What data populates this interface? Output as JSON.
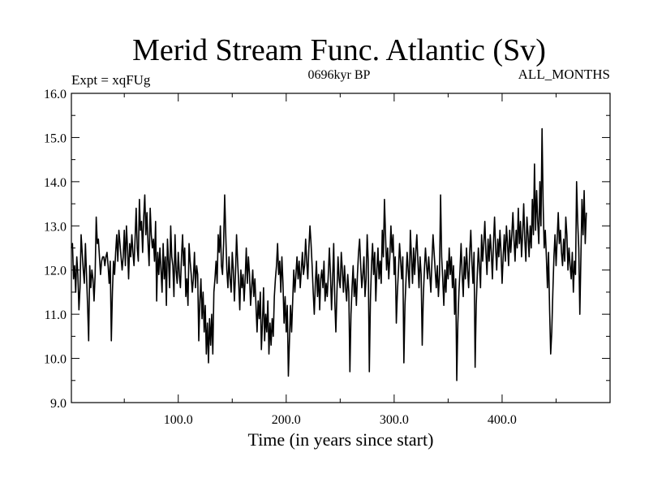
{
  "chart_data": {
    "type": "line",
    "title": "Merid Stream Func. Atlantic (Sv)",
    "subtitle_left": "Expt = xqFUg",
    "subtitle_center": "0696kyr BP",
    "subtitle_right": "ALL_MONTHS",
    "xlabel": "Time (in years since start)",
    "ylabel": "",
    "xlim": [
      1,
      500
    ],
    "ylim": [
      9.0,
      16.0
    ],
    "x_ticks": [
      100,
      200,
      300,
      400
    ],
    "x_tick_labels": [
      "100.0",
      "200.0",
      "300.0",
      "400.0"
    ],
    "y_ticks": [
      9,
      10,
      11,
      12,
      13,
      14,
      15,
      16
    ],
    "y_tick_labels": [
      "9.0",
      "10.0",
      "11.0",
      "12.0",
      "13.0",
      "14.0",
      "15.0",
      "16.0"
    ],
    "grid": false,
    "series": [
      {
        "name": "Merid Stream Func. Atlantic",
        "color": "#000000",
        "x_start": 1,
        "x_step": 1,
        "values": [
          12.5,
          12.6,
          11.8,
          12.1,
          11.5,
          12.3,
          11.9,
          11.1,
          11.6,
          12.8,
          12.4,
          12.0,
          11.7,
          12.6,
          11.9,
          11.2,
          10.4,
          12.1,
          11.6,
          12.0,
          11.8,
          11.3,
          11.9,
          13.2,
          12.6,
          12.7,
          12.3,
          11.9,
          12.2,
          12.3,
          12.3,
          12.1,
          12.3,
          12.4,
          12.1,
          11.7,
          12.2,
          10.4,
          11.5,
          12.2,
          11.9,
          12.4,
          12.8,
          12.2,
          12.9,
          12.6,
          12.3,
          12.0,
          12.3,
          12.9,
          12.1,
          13.0,
          12.5,
          11.8,
          12.6,
          12.3,
          12.8,
          12.4,
          12.1,
          12.7,
          13.4,
          12.5,
          12.2,
          13.6,
          12.9,
          13.1,
          12.4,
          13.2,
          13.7,
          12.8,
          13.3,
          12.6,
          12.1,
          13.4,
          12.8,
          12.5,
          12.7,
          12.2,
          13.1,
          11.3,
          12.4,
          11.9,
          12.5,
          12.0,
          11.5,
          12.6,
          11.8,
          12.3,
          11.2,
          12.7,
          12.2,
          11.6,
          13.0,
          12.3,
          12.1,
          11.4,
          12.8,
          12.0,
          11.7,
          12.4,
          11.9,
          11.6,
          12.3,
          12.8,
          12.1,
          12.5,
          11.4,
          11.8,
          11.2,
          12.6,
          12.2,
          11.9,
          11.5,
          11.8,
          12.4,
          11.6,
          12.1,
          11.9,
          10.4,
          11.3,
          11.8,
          10.9,
          11.5,
          10.6,
          11.2,
          10.1,
          10.8,
          9.9,
          10.9,
          10.3,
          11.0,
          10.1,
          11.5,
          11.8,
          12.2,
          11.7,
          12.8,
          12.4,
          13.0,
          12.1,
          11.9,
          12.6,
          13.7,
          12.8,
          12.0,
          11.6,
          12.3,
          11.8,
          11.5,
          12.4,
          12.0,
          11.3,
          11.9,
          12.8,
          12.2,
          11.7,
          11.1,
          12.0,
          11.6,
          11.9,
          11.3,
          11.8,
          12.5,
          11.7,
          12.3,
          11.9,
          11.2,
          11.6,
          12.0,
          11.4,
          11.8,
          11.2,
          10.6,
          11.3,
          10.9,
          11.5,
          10.2,
          10.8,
          11.6,
          10.4,
          11.0,
          10.6,
          11.3,
          10.1,
          10.8,
          10.3,
          10.9,
          10.5,
          11.4,
          11.8,
          12.1,
          12.6,
          11.9,
          12.2,
          11.5,
          12.3,
          11.7,
          10.8,
          11.4,
          10.6,
          11.2,
          9.6,
          10.4,
          11.2,
          10.6,
          11.3,
          12.0,
          11.5,
          11.9,
          12.3,
          11.8,
          12.2,
          11.6,
          12.0,
          12.4,
          11.9,
          12.1,
          12.7,
          12.2,
          11.8,
          12.5,
          13.0,
          12.6,
          12.1,
          11.5,
          11.0,
          11.7,
          12.2,
          11.4,
          11.9,
          11.1,
          11.8,
          12.0,
          11.6,
          12.2,
          11.3,
          11.7,
          11.4,
          11.9,
          12.5,
          11.9,
          11.1,
          11.8,
          12.6,
          11.3,
          10.6,
          11.5,
          12.3,
          11.8,
          11.6,
          12.4,
          12.0,
          11.5,
          12.1,
          11.6,
          11.3,
          11.9,
          11.5,
          9.7,
          11.0,
          11.6,
          12.1,
          11.4,
          11.8,
          11.2,
          11.9,
          12.4,
          12.7,
          12.1,
          11.6,
          11.9,
          12.3,
          11.4,
          11.8,
          12.8,
          12.2,
          9.7,
          11.3,
          12.1,
          12.6,
          11.9,
          12.4,
          11.3,
          12.0,
          12.5,
          11.8,
          12.2,
          11.7,
          12.9,
          12.3,
          13.6,
          12.8,
          12.0,
          12.5,
          11.8,
          12.3,
          13.0,
          12.4,
          12.8,
          11.9,
          12.3,
          10.8,
          11.5,
          12.0,
          12.6,
          12.2,
          11.8,
          12.3,
          9.9,
          11.2,
          11.8,
          12.4,
          12.0,
          11.6,
          12.9,
          12.3,
          11.7,
          12.5,
          11.9,
          12.4,
          12.8,
          12.2,
          11.6,
          12.3,
          11.9,
          10.3,
          11.4,
          12.0,
          12.5,
          12.1,
          11.8,
          12.3,
          11.9,
          11.5,
          12.2,
          12.8,
          12.4,
          12.0,
          11.6,
          12.1,
          11.4,
          11.9,
          13.7,
          12.3,
          11.8,
          11.2,
          12.0,
          11.5,
          12.2,
          11.8,
          12.5,
          11.9,
          12.3,
          11.6,
          12.1,
          11.0,
          11.8,
          9.5,
          10.8,
          11.5,
          12.0,
          12.6,
          11.9,
          11.4,
          12.3,
          11.8,
          12.5,
          12.0,
          11.6,
          12.4,
          12.9,
          12.2,
          11.7,
          12.4,
          9.8,
          11.2,
          11.9,
          12.5,
          12.1,
          11.6,
          12.8,
          12.2,
          12.6,
          13.1,
          12.4,
          11.9,
          12.7,
          12.2,
          12.8,
          12.4,
          11.8,
          12.6,
          13.2,
          12.5,
          12.0,
          12.7,
          12.3,
          12.9,
          12.4,
          11.7,
          12.3,
          12.8,
          12.2,
          13.0,
          12.6,
          12.1,
          12.9,
          12.4,
          12.8,
          13.3,
          12.7,
          12.2,
          12.9,
          12.5,
          13.4,
          12.6,
          13.1,
          12.3,
          12.8,
          13.5,
          12.7,
          12.2,
          13.2,
          12.8,
          12.3,
          13.0,
          12.5,
          13.6,
          12.8,
          14.4,
          12.9,
          13.8,
          13.1,
          12.6,
          14.0,
          13.0,
          15.2,
          13.5,
          12.5,
          12.9,
          12.3,
          11.6,
          12.4,
          11.1,
          10.1,
          10.6,
          11.5,
          12.3,
          12.8,
          12.1,
          12.7,
          13.3,
          12.6,
          12.9,
          12.4,
          12.1,
          12.7,
          12.2,
          13.2,
          12.8,
          12.0,
          12.5,
          12.1,
          11.8,
          12.4,
          11.5,
          12.2,
          11.9,
          14.0,
          13.1,
          12.5,
          11.0,
          12.3,
          13.6,
          12.8,
          13.8,
          12.6,
          13.3
        ]
      }
    ]
  }
}
